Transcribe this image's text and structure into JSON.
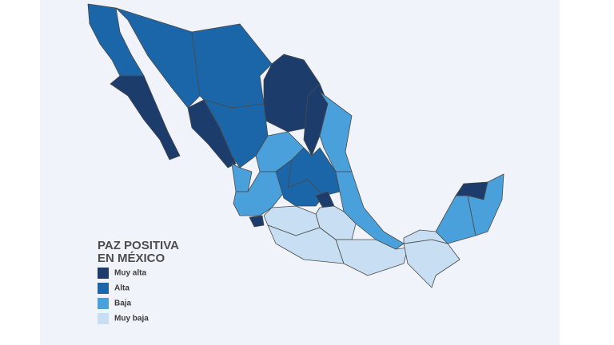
{
  "legend": {
    "title": [
      "PAZ POSITIVA",
      "EN MÉXICO"
    ],
    "items": [
      {
        "label": "Muy alta",
        "color": "#1c3d6c"
      },
      {
        "label": "Alta",
        "color": "#1a66a8"
      },
      {
        "label": "Baja",
        "color": "#4aa0da"
      },
      {
        "label": "Muy baja",
        "color": "#c8def2"
      }
    ]
  }
}
